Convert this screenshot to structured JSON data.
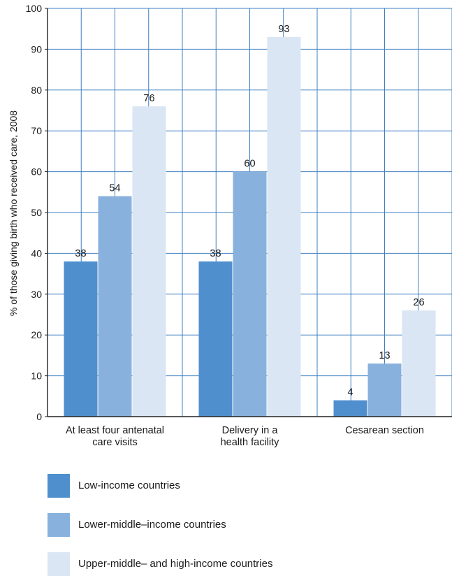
{
  "chart_data": {
    "type": "bar",
    "ylabel": "% of those giving birth who received care, 2008",
    "ylim": [
      0,
      100
    ],
    "yticks": [
      0,
      10,
      20,
      30,
      40,
      50,
      60,
      70,
      80,
      90,
      100
    ],
    "grid": true,
    "categories": [
      [
        "At least four antenatal",
        "care visits"
      ],
      [
        "Delivery in a",
        "health facility"
      ],
      [
        "Cesarean section"
      ]
    ],
    "series": [
      {
        "name": "Low-income countries",
        "color": "#4f8fce",
        "values": [
          38,
          38,
          4
        ]
      },
      {
        "name": "Lower-middle–income countries",
        "color": "#88b2dd",
        "values": [
          54,
          60,
          13
        ]
      },
      {
        "name": "Upper-middle– and high-income countries",
        "color": "#dae6f3",
        "values": [
          76,
          93,
          26
        ]
      }
    ],
    "legend_position": "bottom"
  }
}
